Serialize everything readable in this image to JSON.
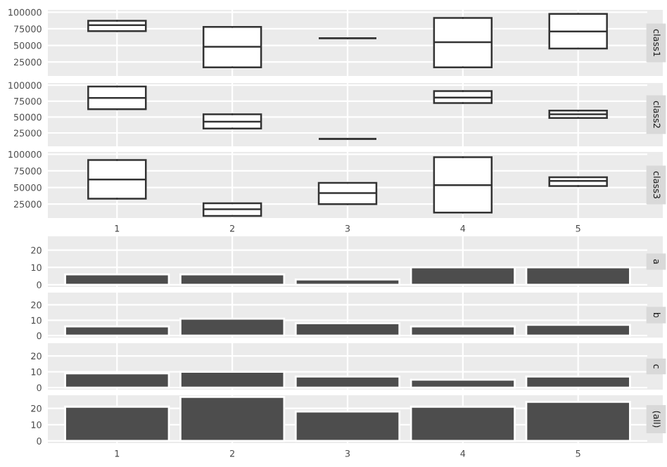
{
  "chart_data": [
    {
      "type": "box",
      "title": "class1",
      "categories": [
        "1",
        "2",
        "3",
        "4",
        "5"
      ],
      "ylim": [
        4000,
        103500
      ],
      "yticks": [
        25000,
        50000,
        75000,
        100000
      ],
      "grid": true,
      "tick_labels": "y",
      "boxes": [
        {
          "low": 71600,
          "q1": 71600,
          "median": 80400,
          "q3": 87200,
          "high": 87200
        },
        {
          "low": 16900,
          "q1": 16900,
          "median": 48000,
          "q3": 77700,
          "high": 77700
        },
        {
          "low": 60800,
          "q1": 60800,
          "median": 60800,
          "q3": 60800,
          "high": 60800
        },
        {
          "low": 16900,
          "q1": 16900,
          "median": 54700,
          "q3": 91200,
          "high": 91200
        },
        {
          "low": 45300,
          "q1": 45300,
          "median": 71000,
          "q3": 97300,
          "high": 97300
        }
      ]
    },
    {
      "type": "box",
      "title": "class2",
      "categories": [
        "1",
        "2",
        "3",
        "4",
        "5"
      ],
      "ylim": [
        4000,
        103500
      ],
      "yticks": [
        25000,
        50000,
        75000,
        100000
      ],
      "grid": true,
      "tick_labels": "y",
      "boxes": [
        {
          "low": 62400,
          "q1": 62400,
          "median": 79900,
          "q3": 98100,
          "high": 98100
        },
        {
          "low": 31800,
          "q1": 31800,
          "median": 42700,
          "q3": 54400,
          "high": 54400
        },
        {
          "low": 15700,
          "q1": 15700,
          "median": 15700,
          "q3": 15700,
          "high": 15700
        },
        {
          "low": 71900,
          "q1": 71900,
          "median": 80600,
          "q3": 90800,
          "high": 90800
        },
        {
          "low": 48500,
          "q1": 48500,
          "median": 54400,
          "q3": 60200,
          "high": 60200
        }
      ]
    },
    {
      "type": "box",
      "title": "class3",
      "categories": [
        "1",
        "2",
        "3",
        "4",
        "5"
      ],
      "ylim": [
        4000,
        103500
      ],
      "yticks": [
        25000,
        50000,
        75000,
        100000
      ],
      "grid": true,
      "boxes": [
        {
          "low": 33200,
          "q1": 33200,
          "median": 61900,
          "q3": 91300,
          "high": 91300
        },
        {
          "low": 7300,
          "q1": 7300,
          "median": 17100,
          "q3": 26200,
          "high": 26200
        },
        {
          "low": 24800,
          "q1": 24800,
          "median": 41600,
          "q3": 57000,
          "high": 57000
        },
        {
          "low": 12200,
          "q1": 12200,
          "median": 53500,
          "q3": 95500,
          "high": 95500
        },
        {
          "low": 52100,
          "q1": 52100,
          "median": 59800,
          "q3": 65400,
          "high": 65400
        }
      ]
    },
    {
      "type": "bar",
      "title": "a",
      "categories": [
        "1",
        "2",
        "3",
        "4",
        "5"
      ],
      "values": [
        6,
        6,
        3,
        10,
        10
      ],
      "color": "#4d4d4d",
      "ylim": [
        -1.3,
        28
      ],
      "yticks": [
        0,
        10,
        20
      ],
      "grid": true,
      "tick_labels": "y"
    },
    {
      "type": "bar",
      "title": "b",
      "categories": [
        "1",
        "2",
        "3",
        "4",
        "5"
      ],
      "values": [
        6,
        11,
        8,
        6,
        7
      ],
      "color": "#4d4d4d",
      "ylim": [
        -1.3,
        28
      ],
      "yticks": [
        0,
        10,
        20
      ],
      "grid": true,
      "tick_labels": "y"
    },
    {
      "type": "bar",
      "title": "c",
      "categories": [
        "1",
        "2",
        "3",
        "4",
        "5"
      ],
      "values": [
        9,
        10,
        7,
        5,
        7
      ],
      "color": "#4d4d4d",
      "ylim": [
        -1.3,
        28
      ],
      "yticks": [
        0,
        10,
        20
      ],
      "grid": true,
      "tick_labels": "y"
    },
    {
      "type": "bar",
      "title": "(all)",
      "categories": [
        "1",
        "2",
        "3",
        "4",
        "5"
      ],
      "values": [
        21,
        27,
        18,
        21,
        24
      ],
      "color": "#4d4d4d",
      "ylim": [
        -1.3,
        28
      ],
      "yticks": [
        0,
        10,
        20
      ],
      "grid": true
    }
  ]
}
